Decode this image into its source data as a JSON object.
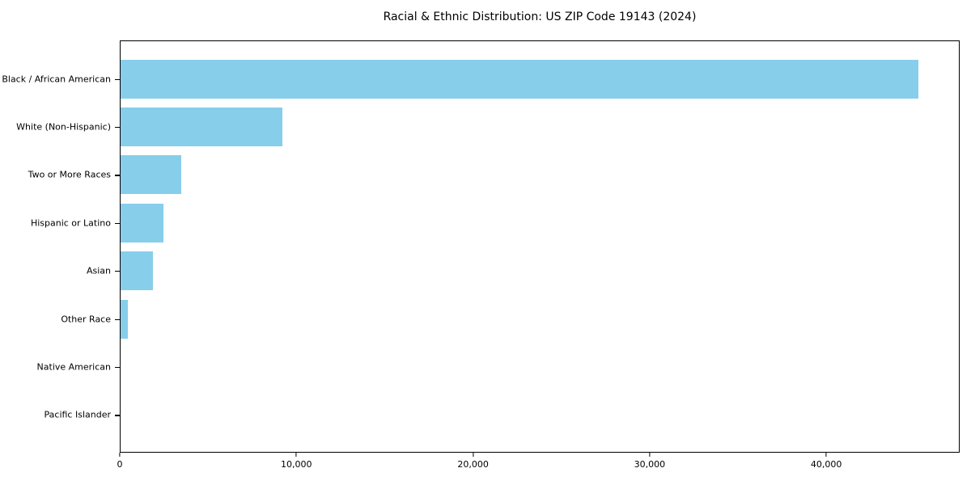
{
  "figure": {
    "background": "#ffffff",
    "text_color": "#000000"
  },
  "chart_data": {
    "type": "bar",
    "orientation": "horizontal",
    "title": "Racial & Ethnic Distribution: US ZIP Code 19143 (2024)",
    "xlabel": "",
    "ylabel": "",
    "categories": [
      "Black / African American",
      "White (Non-Hispanic)",
      "Two or More Races",
      "Hispanic or Latino",
      "Asian",
      "Other Race",
      "Native American",
      "Pacific Islander"
    ],
    "values": [
      45260,
      9180,
      3430,
      2450,
      1820,
      430,
      0,
      0
    ],
    "bar_color": "#87CEEB",
    "xlim": [
      0,
      47550
    ],
    "x_ticks": {
      "values": [
        0,
        10000,
        20000,
        30000,
        40000
      ],
      "labels": [
        "0",
        "10,000",
        "20,000",
        "30,000",
        "40,000"
      ]
    },
    "grid": false,
    "legend": null
  }
}
